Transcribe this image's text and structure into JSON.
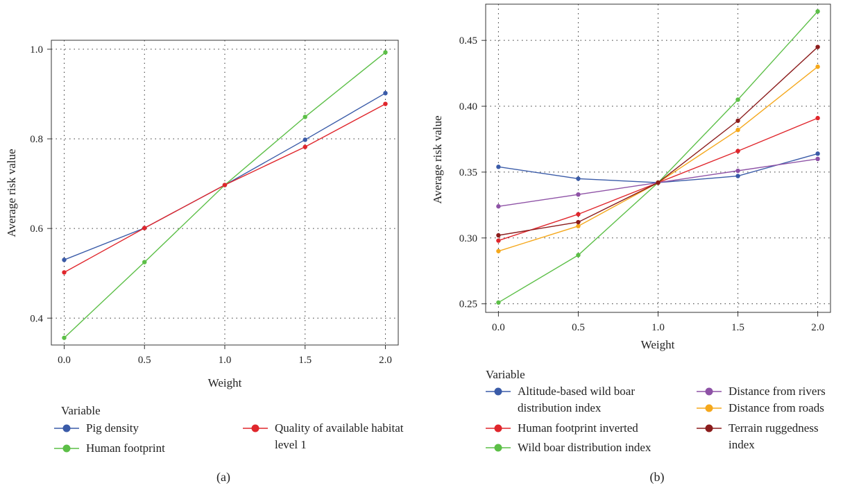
{
  "chart_data": [
    {
      "type": "line",
      "caption": "(a)",
      "xlabel": "Weight",
      "ylabel": "Average risk value",
      "x": [
        0.0,
        0.5,
        1.0,
        1.5,
        2.0
      ],
      "xticks": [
        "0.0",
        "0.5",
        "1.0",
        "1.5",
        "2.0"
      ],
      "yticks": [
        "0.4",
        "0.6",
        "0.8",
        "1.0"
      ],
      "xlim": [
        -0.08,
        2.08
      ],
      "ylim": [
        0.34,
        1.02
      ],
      "grid": true,
      "legend_title": "Variable",
      "legend_position": "bottom",
      "series": [
        {
          "name": "Pig density",
          "color": "#3a5ba8",
          "values": [
            0.53,
            0.601,
            0.697,
            0.798,
            0.902
          ]
        },
        {
          "name": "Human footprint",
          "color": "#5cbf47",
          "values": [
            0.356,
            0.525,
            0.697,
            0.849,
            0.993
          ]
        },
        {
          "name": "Quality of available habitat level 1",
          "color": "#e0262c",
          "values": [
            0.502,
            0.601,
            0.697,
            0.782,
            0.878
          ]
        }
      ]
    },
    {
      "type": "line",
      "caption": "(b)",
      "xlabel": "Weight",
      "ylabel": "Average risk value",
      "x": [
        0.0,
        0.5,
        1.0,
        1.5,
        2.0
      ],
      "xticks": [
        "0.0",
        "0.5",
        "1.0",
        "1.5",
        "2.0"
      ],
      "yticks": [
        "0.25",
        "0.30",
        "0.35",
        "0.40",
        "0.45"
      ],
      "xlim": [
        -0.08,
        2.08
      ],
      "ylim": [
        0.2435,
        0.4775
      ],
      "grid": true,
      "legend_title": "Variable",
      "legend_position": "bottom",
      "series": [
        {
          "name": "Altitude-based wild boar distribution index",
          "color": "#3a5ba8",
          "values": [
            0.354,
            0.345,
            0.342,
            0.347,
            0.364
          ]
        },
        {
          "name": "Human footprint inverted",
          "color": "#e0262c",
          "values": [
            0.298,
            0.318,
            0.342,
            0.366,
            0.391
          ]
        },
        {
          "name": "Wild boar distribution index",
          "color": "#5cbf47",
          "values": [
            0.251,
            0.287,
            0.342,
            0.405,
            0.472
          ]
        },
        {
          "name": "Distance from rivers",
          "color": "#8e52a6",
          "values": [
            0.324,
            0.333,
            0.342,
            0.351,
            0.36
          ]
        },
        {
          "name": "Distance from roads",
          "color": "#f5a81c",
          "values": [
            0.29,
            0.309,
            0.342,
            0.382,
            0.43
          ]
        },
        {
          "name": "Terrain ruggedness index",
          "color": "#8b1c1c",
          "values": [
            0.302,
            0.312,
            0.342,
            0.389,
            0.445
          ]
        }
      ]
    }
  ]
}
